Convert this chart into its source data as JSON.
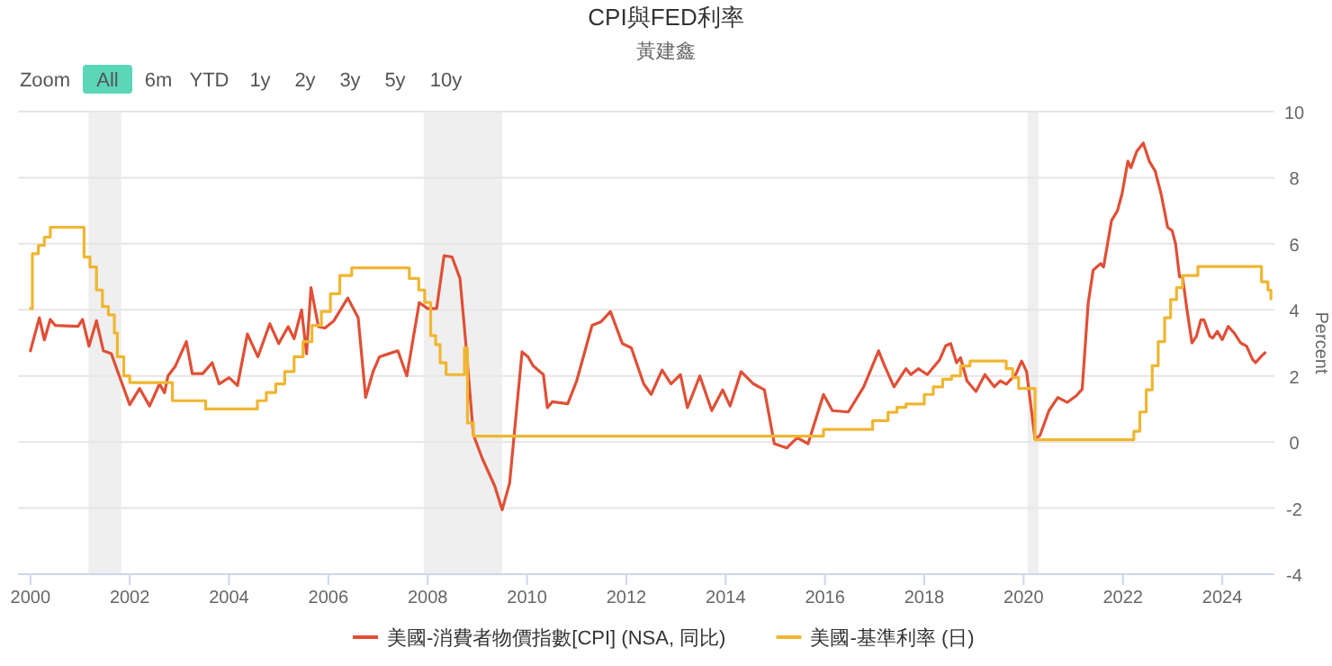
{
  "chart_data": {
    "type": "line",
    "title": "CPI與FED利率",
    "subtitle": "黃建鑫",
    "annotations": [
      "Zoom",
      "All",
      "6m",
      "YTD",
      "1y",
      "2y",
      "3y",
      "5y",
      "10y"
    ],
    "ylabel": "Percent",
    "xlim": [
      1999.75,
      2025.05
    ],
    "ylim": [
      -4,
      10
    ],
    "xticks": [
      2000,
      2002,
      2004,
      2006,
      2008,
      2010,
      2012,
      2014,
      2016,
      2018,
      2020,
      2022,
      2024
    ],
    "yticks": [
      -4,
      -2,
      0,
      2,
      4,
      6,
      8,
      10
    ],
    "grid": "y",
    "legend": "bottom",
    "line_style": "solid",
    "marker": "none",
    "bands": [
      {
        "axis": "x",
        "from": 2001.17,
        "to": 2001.83,
        "color": "#efefef"
      },
      {
        "axis": "x",
        "from": 2007.92,
        "to": 2009.5,
        "color": "#efefef"
      },
      {
        "axis": "x",
        "from": 2020.08,
        "to": 2020.3,
        "color": "#efefef"
      }
    ],
    "series": [
      {
        "name": "美國-消費者物價指數[CPI] (NSA, 同比)",
        "color": "#e04f36",
        "type": "line",
        "x": [
          2000.0,
          2000.18,
          2000.28,
          2000.4,
          2000.5,
          2000.96,
          2001.05,
          2001.18,
          2001.33,
          2001.47,
          2001.63,
          2001.78,
          2002.0,
          2002.2,
          2002.4,
          2002.6,
          2002.7,
          2002.77,
          2002.92,
          2003.14,
          2003.26,
          2003.47,
          2003.66,
          2003.8,
          2004.0,
          2004.17,
          2004.37,
          2004.58,
          2004.82,
          2005.0,
          2005.19,
          2005.31,
          2005.46,
          2005.56,
          2005.65,
          2005.8,
          2005.93,
          2006.11,
          2006.39,
          2006.6,
          2006.75,
          2006.9,
          2007.03,
          2007.21,
          2007.4,
          2007.58,
          2007.83,
          2008.0,
          2008.18,
          2008.33,
          2008.49,
          2008.65,
          2008.77,
          2008.92,
          2009.1,
          2009.35,
          2009.5,
          2009.65,
          2009.9,
          2010.02,
          2010.12,
          2010.33,
          2010.41,
          2010.51,
          2010.82,
          2011.0,
          2011.31,
          2011.49,
          2011.68,
          2011.92,
          2012.1,
          2012.35,
          2012.5,
          2012.72,
          2012.9,
          2013.09,
          2013.23,
          2013.48,
          2013.72,
          2013.94,
          2014.09,
          2014.31,
          2014.56,
          2014.78,
          2014.98,
          2015.23,
          2015.44,
          2015.66,
          2015.97,
          2016.15,
          2016.47,
          2016.78,
          2017.08,
          2017.2,
          2017.39,
          2017.63,
          2017.73,
          2017.88,
          2018.06,
          2018.31,
          2018.43,
          2018.53,
          2018.65,
          2018.73,
          2018.86,
          2019.04,
          2019.22,
          2019.41,
          2019.53,
          2019.65,
          2019.84,
          2019.96,
          2020.06,
          2020.23,
          2020.33,
          2020.51,
          2020.69,
          2020.88,
          2021.06,
          2021.18,
          2021.3,
          2021.4,
          2021.55,
          2021.61,
          2021.77,
          2021.89,
          2021.98,
          2022.1,
          2022.16,
          2022.28,
          2022.41,
          2022.53,
          2022.65,
          2022.77,
          2022.9,
          2022.99,
          2023.06,
          2023.14,
          2023.2,
          2023.29,
          2023.39,
          2023.48,
          2023.57,
          2023.63,
          2023.75,
          2023.81,
          2023.9,
          2024.0,
          2024.12,
          2024.24,
          2024.37,
          2024.49,
          2024.61,
          2024.67,
          2024.79,
          2024.86
        ],
        "values": [
          2.76,
          3.76,
          3.09,
          3.71,
          3.53,
          3.5,
          3.71,
          2.9,
          3.67,
          2.76,
          2.67,
          2.04,
          1.13,
          1.62,
          1.09,
          1.76,
          1.49,
          2.0,
          2.3,
          3.04,
          2.07,
          2.07,
          2.4,
          1.76,
          1.95,
          1.71,
          3.27,
          2.58,
          3.58,
          2.98,
          3.49,
          3.13,
          4.0,
          2.67,
          4.67,
          3.49,
          3.45,
          3.67,
          4.36,
          3.76,
          1.35,
          2.13,
          2.58,
          2.67,
          2.76,
          2.0,
          4.22,
          4.04,
          4.04,
          5.64,
          5.6,
          4.95,
          2.95,
          0.22,
          -0.5,
          -1.33,
          -2.05,
          -1.24,
          2.73,
          2.58,
          2.31,
          2.04,
          1.04,
          1.22,
          1.16,
          1.85,
          3.53,
          3.64,
          3.95,
          2.98,
          2.85,
          1.76,
          1.44,
          2.18,
          1.76,
          2.04,
          1.04,
          2.0,
          0.95,
          1.58,
          1.09,
          2.13,
          1.76,
          1.58,
          -0.05,
          -0.18,
          0.13,
          -0.05,
          1.44,
          0.95,
          0.91,
          1.67,
          2.76,
          2.31,
          1.67,
          2.22,
          2.04,
          2.22,
          2.04,
          2.49,
          2.91,
          2.98,
          2.4,
          2.55,
          1.85,
          1.53,
          2.04,
          1.67,
          1.85,
          1.75,
          2.04,
          2.45,
          2.13,
          0.09,
          0.2,
          0.95,
          1.35,
          1.2,
          1.4,
          1.6,
          4.2,
          5.2,
          5.4,
          5.3,
          6.7,
          7.0,
          7.5,
          8.5,
          8.3,
          8.8,
          9.05,
          8.5,
          8.2,
          7.5,
          6.5,
          6.4,
          6.0,
          5.0,
          5.0,
          4.0,
          3.0,
          3.2,
          3.7,
          3.7,
          3.2,
          3.15,
          3.35,
          3.1,
          3.5,
          3.3,
          3.0,
          2.9,
          2.5,
          2.4,
          2.6,
          2.7
        ]
      },
      {
        "name": "美國-基準利率 (日)",
        "color": "#f0b631",
        "type": "step",
        "x": [
          2000.0,
          2000.04,
          2000.16,
          2000.28,
          2000.4,
          2000.96,
          2001.08,
          2001.2,
          2001.33,
          2001.45,
          2001.57,
          2001.69,
          2001.75,
          2001.88,
          2002.0,
          2002.86,
          2003.53,
          2004.57,
          2004.75,
          2004.94,
          2005.12,
          2005.31,
          2005.49,
          2005.67,
          2005.86,
          2006.04,
          2006.23,
          2006.47,
          2007.63,
          2007.82,
          2007.94,
          2008.06,
          2008.16,
          2008.25,
          2008.37,
          2008.74,
          2008.8,
          2008.92,
          2015.97,
          2016.96,
          2017.27,
          2017.45,
          2017.63,
          2018.0,
          2018.18,
          2018.37,
          2018.55,
          2018.73,
          2018.92,
          2019.65,
          2019.78,
          2019.9,
          2020.23,
          2022.22,
          2022.34,
          2022.47,
          2022.59,
          2022.71,
          2022.84,
          2022.96,
          2023.08,
          2023.2,
          2023.51,
          2024.79,
          2024.92,
          2024.98
        ],
        "values": [
          4.04,
          5.7,
          5.95,
          6.2,
          6.5,
          6.5,
          5.6,
          5.3,
          4.6,
          4.1,
          3.85,
          3.3,
          2.58,
          2.0,
          1.8,
          1.25,
          1.0,
          1.25,
          1.5,
          1.76,
          2.13,
          2.58,
          3.04,
          3.53,
          3.95,
          4.49,
          5.04,
          5.27,
          4.95,
          4.6,
          4.22,
          3.22,
          2.95,
          2.4,
          2.04,
          2.85,
          0.58,
          0.18,
          0.38,
          0.65,
          0.9,
          1.05,
          1.15,
          1.44,
          1.67,
          1.9,
          2.0,
          2.3,
          2.45,
          2.22,
          1.95,
          1.62,
          0.07,
          0.33,
          0.91,
          1.58,
          2.31,
          3.04,
          3.76,
          4.31,
          4.67,
          5.04,
          5.31,
          4.85,
          4.6,
          4.33
        ]
      }
    ]
  }
}
